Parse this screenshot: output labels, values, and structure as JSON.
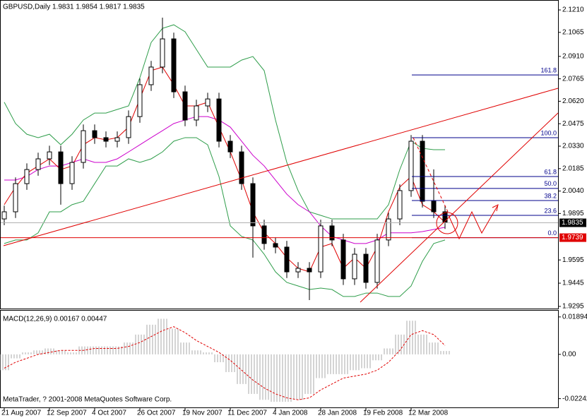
{
  "chart_data": [
    {
      "type": "candlestick",
      "title": "GBPUSD,Daily  1.9831 1.9854 1.9817 1.9835",
      "categories": [
        "21 Aug 2007",
        null,
        null,
        null,
        "12 Sep 2007",
        null,
        null,
        null,
        "4 Oct 2007",
        null,
        null,
        null,
        "26 Oct 2007",
        null,
        null,
        null,
        "19 Nov 2007",
        null,
        null,
        null,
        "11 Dec 2007",
        null,
        null,
        null,
        "4 Jan 2008",
        null,
        null,
        null,
        "28 Jan 2008",
        null,
        null,
        null,
        "19 Feb 2008",
        null,
        null,
        null,
        "12 Mar 2008",
        null,
        null,
        null
      ],
      "open": [
        1.986,
        1.9906,
        2.0088,
        2.0179,
        2.0248,
        2.0293,
        2.0088,
        2.0225,
        2.043,
        2.0385,
        2.0362,
        2.0385,
        2.0521,
        2.0727,
        2.0841,
        2.1023,
        2.0681,
        2.0499,
        2.059,
        2.0635,
        2.0362,
        2.0293,
        2.0088,
        1.9815,
        1.9701,
        1.9678,
        1.9518,
        1.9541,
        1.9518,
        1.9815,
        1.9724,
        1.9473,
        1.9632,
        1.945,
        1.9724,
        1.986,
        2.0043,
        2.0362,
        1.9974,
        1.9906
      ],
      "high": [
        1.9946,
        2.0128,
        2.0219,
        2.0288,
        2.0333,
        2.0333,
        2.0265,
        2.047,
        2.047,
        2.0425,
        2.0425,
        2.0561,
        2.0767,
        2.0881,
        2.116,
        2.1063,
        2.0721,
        2.063,
        2.0675,
        2.0675,
        2.0402,
        2.0333,
        2.0128,
        1.9855,
        1.9741,
        1.9718,
        1.9581,
        1.9581,
        1.9855,
        1.9855,
        1.9764,
        1.9672,
        1.9672,
        1.9764,
        1.99,
        2.0083,
        2.0402,
        2.0402,
        2.018,
        1.9946
      ],
      "low": [
        1.982,
        1.9866,
        2.0048,
        2.0139,
        2.0208,
        1.9952,
        2.0048,
        2.0185,
        2.0345,
        2.0322,
        2.0322,
        2.0345,
        2.0481,
        2.0687,
        2.0801,
        2.0641,
        2.0459,
        2.0459,
        2.055,
        2.0322,
        2.0253,
        2.0048,
        1.961,
        1.9661,
        1.9638,
        1.9478,
        1.9478,
        1.9336,
        1.9478,
        1.9684,
        1.9433,
        1.9433,
        1.941,
        1.941,
        1.9684,
        1.982,
        2.0003,
        1.9934,
        1.9866,
        1.9795
      ],
      "close": [
        1.9906,
        2.0088,
        2.0179,
        2.0248,
        2.0293,
        2.0088,
        2.0225,
        2.043,
        2.0385,
        2.0362,
        2.0385,
        2.0521,
        2.0727,
        2.0841,
        2.1023,
        2.0681,
        2.0499,
        2.059,
        2.0635,
        2.0362,
        2.0293,
        2.0088,
        1.9815,
        1.9701,
        1.9678,
        1.9518,
        1.9541,
        1.9518,
        1.9815,
        1.9724,
        1.9473,
        1.9632,
        1.945,
        1.9724,
        1.986,
        2.0043,
        2.0362,
        1.9974,
        1.9906,
        1.9835
      ],
      "up_color": "#ffffff",
      "down_color": "#000000",
      "overlays": [
        {
          "color": "#2e9d4a",
          "values": [
            2.0614,
            2.0476,
            2.0407,
            2.0385,
            2.0407,
            2.0339,
            2.0407,
            2.0499,
            2.0544,
            2.0544,
            2.0567,
            2.059,
            2.0772,
            2.1,
            2.1091,
            2.1114,
            2.1069,
            2.0955,
            2.0841,
            2.0841,
            2.0841,
            2.0886,
            2.0909,
            2.0818,
            2.0499,
            2.0225,
            2.0043,
            1.9906,
            1.9883,
            1.986,
            1.986,
            1.986,
            1.986,
            1.986,
            1.9952,
            2.0179,
            2.0362,
            2.0316,
            2.0307,
            2.0307
          ]
        },
        {
          "color": "#2e9d4a",
          "values": [
            1.9701,
            1.9724,
            1.9724,
            1.977,
            1.9906,
            1.9906,
            1.9952,
            1.9974,
            2.0088,
            2.0202,
            2.0202,
            2.0248,
            2.0225,
            2.0248,
            2.0293,
            2.0362,
            2.0385,
            2.0385,
            2.0339,
            2.0134,
            1.9815,
            1.9747,
            1.9724,
            1.9632,
            1.9518,
            1.945,
            1.9427,
            1.9404,
            1.9413,
            1.9404,
            1.9359,
            1.9359,
            1.9381,
            1.9381,
            1.9359,
            1.9359,
            1.9427,
            1.9586,
            1.9701,
            1.9724
          ]
        },
        {
          "color": "#cc00cc",
          "values": [
            2.0111,
            2.0111,
            2.0134,
            2.0179,
            2.0202,
            2.0202,
            2.0225,
            2.0248,
            2.0225,
            2.0225,
            2.0248,
            2.0293,
            2.0339,
            2.0385,
            2.043,
            2.0476,
            2.0499,
            2.0521,
            2.0521,
            2.0499,
            2.0453,
            2.0362,
            2.0271,
            2.0202,
            2.0111,
            2.002,
            1.9952,
            1.9906,
            1.9815,
            1.9747,
            1.9724,
            1.9701,
            1.9701,
            1.9724,
            1.977,
            1.977,
            1.977,
            1.9778,
            1.9792,
            1.9806
          ]
        },
        {
          "color": "#e00000",
          "values": [
            1.9952,
            2.0066,
            2.0156,
            2.0202,
            2.0248,
            2.0179,
            2.0202,
            2.0339,
            2.0385,
            2.0371,
            2.0385,
            2.0453,
            2.0636,
            2.0818,
            2.0841,
            2.0727,
            2.059,
            2.059,
            2.0614,
            2.0453,
            2.0293,
            2.0111,
            1.9906,
            1.977,
            1.9701,
            1.9609,
            1.9541,
            1.9518,
            1.9678,
            1.9701,
            1.9541,
            1.9609,
            1.9541,
            1.9678,
            1.9906,
            2.0066,
            2.0134,
            1.9952,
            1.9906,
            1.9838
          ]
        }
      ],
      "fib_color": "#00008b",
      "fib_levels": [
        {
          "level": 161.8,
          "price": 2.079
        },
        {
          "level": {
            "value": 100,
            "label": "100.0"
          },
          "price": 2.0385
        },
        {
          "level": 61.8,
          "price": 2.0134
        },
        {
          "level": {
            "value": 50,
            "label": "50.0"
          },
          "price": 2.0057
        },
        {
          "level": 38.2,
          "price": 1.9979
        },
        {
          "level": 23.6,
          "price": 1.9883
        },
        {
          "level": {
            "value": 0,
            "label": "0.0"
          },
          "price": 1.9739
        }
      ],
      "price_markers": [
        {
          "value": 1.9835,
          "color": "#000000",
          "line_color": "#b0b0b0"
        },
        {
          "value": 1.9739,
          "color": "#e00000",
          "line_color": "#e00000"
        }
      ],
      "ylim": [
        1.9281,
        2.1265
      ],
      "yticks": [
        {
          "value": 2.121,
          "label": "2.1210"
        },
        {
          "value": 2.1065,
          "label": "2.1065"
        },
        {
          "value": 2.091,
          "label": "2.0910"
        },
        {
          "value": 2.0765,
          "label": "2.0765"
        },
        {
          "value": 2.062,
          "label": "2.0620"
        },
        {
          "value": 2.0475,
          "label": "2.0475"
        },
        {
          "value": 2.033,
          "label": "2.0330"
        },
        {
          "value": 2.0185,
          "label": "2.0185"
        },
        {
          "value": 2.004,
          "label": "2.0040"
        },
        {
          "value": 1.9895,
          "label": "1.9895"
        },
        {
          "value": 1.9595,
          "label": "1.9595"
        },
        {
          "value": 1.9445,
          "label": "1.9445"
        },
        {
          "value": 1.9295,
          "label": "1.9295"
        }
      ]
    },
    {
      "type": "macd",
      "title": "MACD(12,26,9) 0.00167 0.00447",
      "note": "MetaTrader, ? 2001-2008 MetaQuotes Software Corp.",
      "histogram": [
        -0.008,
        -0.002,
        0.001,
        0.002,
        0.003,
        0.002,
        0.001,
        0.004,
        0.004,
        0.004,
        0.004,
        0.006,
        0.01,
        0.015,
        0.018,
        0.013,
        0.006,
        0.002,
        0.001,
        -0.004,
        -0.009,
        -0.015,
        -0.02,
        -0.023,
        -0.024,
        -0.024,
        -0.023,
        -0.02,
        -0.012,
        -0.01,
        -0.01,
        -0.008,
        -0.007,
        -0.003,
        0.003,
        0.01,
        0.017,
        0.01,
        0.006,
        0.00167
      ],
      "hist_color": "#a8a8a8",
      "signal": [
        -0.007,
        -0.004,
        -0.002,
        0,
        0.001,
        0.002,
        0.002,
        0.002,
        0.003,
        0.003,
        0.003,
        0.004,
        0.006,
        0.009,
        0.012,
        0.014,
        0.011,
        0.007,
        0.004,
        0.001,
        -0.003,
        -0.008,
        -0.013,
        -0.017,
        -0.02,
        -0.022,
        -0.023,
        -0.022,
        -0.018,
        -0.015,
        -0.012,
        -0.011,
        -0.01,
        -0.008,
        -0.004,
        0.002,
        0.01,
        0.012,
        0.01,
        0.00447
      ],
      "signal_color": "#e00000",
      "ylim": [
        -0.0272,
        0.0221
      ],
      "yticks": [
        0.01894,
        {
          "value": 0,
          "label": "0.00"
        },
        -0.02242
      ]
    }
  ]
}
